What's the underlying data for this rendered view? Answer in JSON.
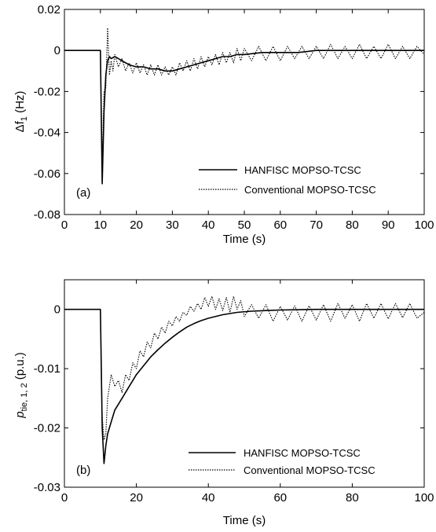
{
  "chart_data": [
    {
      "type": "line",
      "panel_label": "(a)",
      "xlabel": "Time (s)",
      "ylabel": "Δf",
      "ylabel_sub": "1",
      "ylabel_unit": " (Hz)",
      "xlim": [
        0,
        100
      ],
      "ylim": [
        -0.08,
        0.02
      ],
      "xticks": [
        0,
        10,
        20,
        30,
        40,
        50,
        60,
        70,
        80,
        90,
        100
      ],
      "xtick_labels": [
        "0",
        "10",
        "20",
        "30",
        "40",
        "50",
        "60",
        "70",
        "80",
        "90",
        "100"
      ],
      "yticks": [
        0.02,
        0,
        -0.02,
        -0.04,
        -0.06,
        -0.08
      ],
      "ytick_labels": [
        "0.02",
        "0",
        "-0.02",
        "-0.04",
        "-0.06",
        "-0.08"
      ],
      "grid": false,
      "legend_position": "lower-right",
      "series": [
        {
          "name": "HANFISC MOPSO-TCSC",
          "style": "solid",
          "color": "#000000",
          "x": [
            0,
            10,
            10.5,
            11,
            11.5,
            12,
            12.5,
            13,
            14,
            15,
            16,
            18,
            20,
            22,
            24,
            26,
            28,
            30,
            32,
            34,
            36,
            38,
            40,
            42,
            44,
            46,
            48,
            50,
            55,
            60,
            65,
            70,
            75,
            80,
            85,
            90,
            95,
            100
          ],
          "y": [
            0,
            0,
            -0.065,
            -0.03,
            -0.012,
            -0.005,
            -0.003,
            -0.004,
            -0.003,
            -0.004,
            -0.005,
            -0.007,
            -0.008,
            -0.008,
            -0.009,
            -0.009,
            -0.01,
            -0.01,
            -0.009,
            -0.008,
            -0.007,
            -0.006,
            -0.005,
            -0.004,
            -0.003,
            -0.003,
            -0.002,
            -0.002,
            -0.001,
            -0.001,
            -0.001,
            0,
            0,
            0,
            0,
            0,
            0,
            0
          ]
        },
        {
          "name": "Conventional MOPSO-TCSC",
          "style": "dotted",
          "color": "#000000",
          "x": [
            0,
            10,
            10.5,
            11,
            11.5,
            12,
            12.5,
            13,
            13.5,
            14,
            15,
            16,
            17,
            18,
            19,
            20,
            21,
            22,
            23,
            24,
            25,
            26,
            27,
            28,
            29,
            30,
            31,
            32,
            33,
            34,
            35,
            36,
            37,
            38,
            39,
            40,
            41,
            42,
            43,
            44,
            45,
            46,
            47,
            48,
            49,
            50,
            52,
            54,
            56,
            58,
            60,
            62,
            64,
            66,
            68,
            70,
            72,
            74,
            76,
            78,
            80,
            82,
            84,
            86,
            88,
            90,
            92,
            94,
            96,
            98,
            100
          ],
          "y": [
            0,
            0,
            -0.055,
            -0.02,
            -0.018,
            0.011,
            -0.012,
            -0.005,
            -0.01,
            -0.002,
            -0.008,
            -0.004,
            -0.01,
            -0.006,
            -0.011,
            -0.006,
            -0.011,
            -0.007,
            -0.012,
            -0.007,
            -0.012,
            -0.007,
            -0.012,
            -0.008,
            -0.012,
            -0.008,
            -0.012,
            -0.006,
            -0.01,
            -0.005,
            -0.01,
            -0.004,
            -0.009,
            -0.003,
            -0.008,
            -0.003,
            -0.007,
            -0.002,
            -0.007,
            -0.001,
            -0.006,
            -0.001,
            -0.006,
            0.001,
            -0.005,
            0.001,
            -0.005,
            0.002,
            -0.005,
            0.002,
            -0.005,
            0.002,
            -0.004,
            0.002,
            -0.004,
            0.002,
            -0.004,
            0.003,
            -0.004,
            0.002,
            -0.004,
            0.003,
            -0.004,
            0.002,
            -0.004,
            0.003,
            -0.004,
            0.002,
            -0.004,
            0.002,
            -0.002
          ]
        }
      ]
    },
    {
      "type": "line",
      "panel_label": "(b)",
      "xlabel": "Time (s)",
      "ylabel": "p",
      "ylabel_sub": "tie, 1, 2",
      "ylabel_unit": " (p.u.)",
      "xlim": [
        0,
        100
      ],
      "ylim": [
        -0.03,
        0.005
      ],
      "xticks": [
        0,
        20,
        40,
        60,
        80,
        100
      ],
      "xtick_labels": [
        "0",
        "20",
        "40",
        "60",
        "80",
        "100"
      ],
      "yticks": [
        0,
        -0.01,
        -0.02,
        -0.03
      ],
      "ytick_labels": [
        "0",
        "-0.01",
        "-0.02",
        "-0.03"
      ],
      "grid": false,
      "legend_position": "lower-right",
      "series": [
        {
          "name": "HANFISC MOPSO-TCSC",
          "style": "solid",
          "color": "#000000",
          "x": [
            0,
            10,
            10.5,
            11,
            11.5,
            12,
            13,
            14,
            15,
            16,
            18,
            20,
            22,
            24,
            26,
            28,
            30,
            32,
            34,
            36,
            38,
            40,
            44,
            48,
            52,
            56,
            60,
            70,
            80,
            90,
            100
          ],
          "y": [
            0,
            0,
            -0.02,
            -0.026,
            -0.023,
            -0.021,
            -0.019,
            -0.017,
            -0.016,
            -0.015,
            -0.013,
            -0.011,
            -0.0095,
            -0.008,
            -0.0068,
            -0.0057,
            -0.0047,
            -0.0038,
            -0.003,
            -0.0024,
            -0.0019,
            -0.0015,
            -0.0009,
            -0.0005,
            -0.0003,
            -0.0002,
            -0.0001,
            0,
            0,
            0,
            0
          ]
        },
        {
          "name": "Conventional MOPSO-TCSC",
          "style": "dotted",
          "color": "#000000",
          "x": [
            0,
            10,
            10.5,
            11,
            11.5,
            12,
            13,
            14,
            15,
            16,
            17,
            18,
            19,
            20,
            21,
            22,
            23,
            24,
            25,
            26,
            27,
            28,
            29,
            30,
            31,
            32,
            33,
            34,
            35,
            36,
            37,
            38,
            39,
            40,
            41,
            42,
            43,
            44,
            45,
            46,
            47,
            48,
            49,
            50,
            52,
            54,
            56,
            58,
            60,
            62,
            64,
            66,
            68,
            70,
            72,
            74,
            76,
            78,
            80,
            82,
            84,
            86,
            88,
            90,
            92,
            94,
            96,
            98,
            100
          ],
          "y": [
            0,
            0,
            -0.018,
            -0.022,
            -0.021,
            -0.015,
            -0.011,
            -0.013,
            -0.012,
            -0.014,
            -0.011,
            -0.012,
            -0.009,
            -0.01,
            -0.007,
            -0.008,
            -0.0055,
            -0.0065,
            -0.004,
            -0.005,
            -0.003,
            -0.004,
            -0.002,
            -0.0028,
            -0.0012,
            -0.002,
            -0.0005,
            -0.001,
            0.0005,
            -0.0003,
            0.001,
            0,
            0.002,
            0.0005,
            0.0022,
            0.0,
            0.0018,
            -0.0002,
            0.002,
            -0.0005,
            0.0022,
            0,
            0.0015,
            -0.0012,
            0.0008,
            -0.0015,
            0.0008,
            -0.002,
            0.0005,
            -0.0018,
            0.0006,
            -0.002,
            0.0006,
            -0.0018,
            0.0008,
            -0.002,
            0.001,
            -0.0015,
            0.0008,
            -0.002,
            0.001,
            -0.0015,
            0.001,
            -0.0016,
            0.001,
            -0.0014,
            0.001,
            -0.0015,
            -0.0005
          ]
        }
      ]
    }
  ]
}
